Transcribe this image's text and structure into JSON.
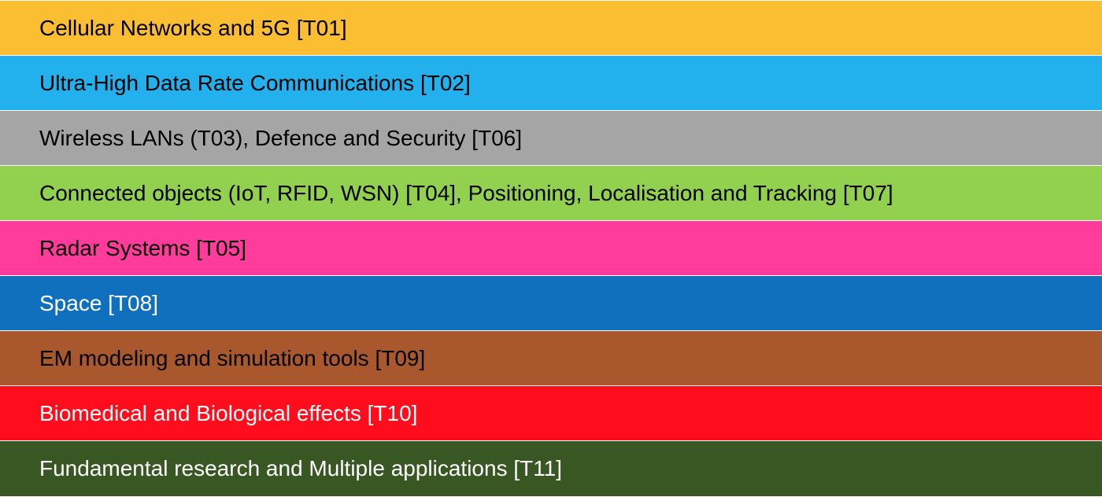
{
  "bands": [
    {
      "label": "Cellular Networks and 5G [T01]",
      "bg": "#FBBE33",
      "fg": "#000000"
    },
    {
      "label": "Ultra-High Data Rate Communications [T02]",
      "bg": "#22B1EC",
      "fg": "#000000"
    },
    {
      "label": "Wireless LANs (T03), Defence and Security [T06]",
      "bg": "#A5A5A5",
      "fg": "#000000"
    },
    {
      "label": "Connected objects (IoT, RFID, WSN) [T04], Positioning, Localisation and Tracking [T07]",
      "bg": "#92D050",
      "fg": "#000000"
    },
    {
      "label": "Radar Systems [T05]",
      "bg": "#FF3C9C",
      "fg": "#000000"
    },
    {
      "label": "Space [T08]",
      "bg": "#1170BD",
      "fg": "#FFFFFF"
    },
    {
      "label": "EM modeling and simulation tools [T09]",
      "bg": "#A8582C",
      "fg": "#000000"
    },
    {
      "label": "Biomedical and Biological effects [T10]",
      "bg": "#FF0D1C",
      "fg": "#FFFFFF"
    },
    {
      "label": "Fundamental research and Multiple applications [T11]",
      "bg": "#385723",
      "fg": "#FFFFFF"
    }
  ]
}
